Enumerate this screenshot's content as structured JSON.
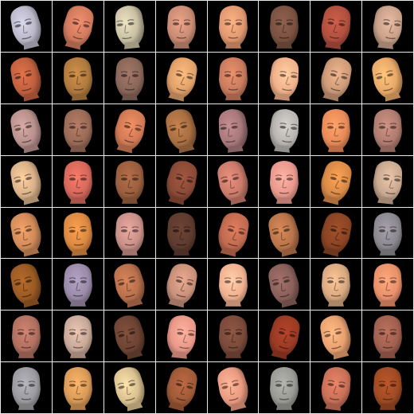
{
  "grid": {
    "rows": 8,
    "cols": 8,
    "cell_background": "#000000",
    "separator_color": "#e8e8e8"
  },
  "faces": [
    {
      "skin": "#b9b7c8",
      "pose": "tilt-left"
    },
    {
      "skin": "#d07a5e",
      "pose": "tilt-right"
    },
    {
      "skin": "#c9c0a4",
      "pose": "turn-left"
    },
    {
      "skin": "#c98b74",
      "pose": "front"
    },
    {
      "skin": "#e09870",
      "pose": "front"
    },
    {
      "skin": "#7a5242",
      "pose": "front"
    },
    {
      "skin": "#b0503f",
      "pose": "tilt-up"
    },
    {
      "skin": "#c8a08a",
      "pose": "turn-right"
    },
    {
      "skin": "#c0603f",
      "pose": "tilt-left"
    },
    {
      "skin": "#b07a3e",
      "pose": "tilt-down"
    },
    {
      "skin": "#8a6658",
      "pose": "front"
    },
    {
      "skin": "#e0a06a",
      "pose": "tilt-right"
    },
    {
      "skin": "#c87b5d",
      "pose": "front"
    },
    {
      "skin": "#f0b08a",
      "pose": "turn-right"
    },
    {
      "skin": "#cd9a78",
      "pose": "tilt-right"
    },
    {
      "skin": "#e8a868",
      "pose": "tilt-left"
    },
    {
      "skin": "#b8908c",
      "pose": "tilt-left"
    },
    {
      "skin": "#9a6a56",
      "pose": "front"
    },
    {
      "skin": "#d07a55",
      "pose": "tilt-right"
    },
    {
      "skin": "#a86e42",
      "pose": "tilt-left"
    },
    {
      "skin": "#a8787a",
      "pose": "turn-left"
    },
    {
      "skin": "#b8b4b0",
      "pose": "turn-right"
    },
    {
      "skin": "#e88a58",
      "pose": "front"
    },
    {
      "skin": "#b07c70",
      "pose": "front"
    },
    {
      "skin": "#d8b088",
      "pose": "tilt-left"
    },
    {
      "skin": "#d4685a",
      "pose": "front"
    },
    {
      "skin": "#9a5e3e",
      "pose": "front"
    },
    {
      "skin": "#8a4a36",
      "pose": "tilt-right"
    },
    {
      "skin": "#c87a6a",
      "pose": "tilt-left"
    },
    {
      "skin": "#e8988c",
      "pose": "front"
    },
    {
      "skin": "#d88a48",
      "pose": "tilt-right"
    },
    {
      "skin": "#c8a890",
      "pose": "turn-right"
    },
    {
      "skin": "#d08a58",
      "pose": "tilt-left"
    },
    {
      "skin": "#d98842",
      "pose": "tilt-down"
    },
    {
      "skin": "#c89088",
      "pose": "front"
    },
    {
      "skin": "#5e3a2e",
      "pose": "front"
    },
    {
      "skin": "#c06a50",
      "pose": "tilt-right"
    },
    {
      "skin": "#b8744a",
      "pose": "tilt-left"
    },
    {
      "skin": "#8a4424",
      "pose": "tilt-right"
    },
    {
      "skin": "#8c8890",
      "pose": "front"
    },
    {
      "skin": "#9a5a24",
      "pose": "tilt-left"
    },
    {
      "skin": "#9a8aa8",
      "pose": "front"
    },
    {
      "skin": "#b8704c",
      "pose": "tilt-left"
    },
    {
      "skin": "#c8907a",
      "pose": "tilt-right"
    },
    {
      "skin": "#f0b090",
      "pose": "front"
    },
    {
      "skin": "#8a605a",
      "pose": "tilt-left"
    },
    {
      "skin": "#d8a880",
      "pose": "front"
    },
    {
      "skin": "#e8906a",
      "pose": "front"
    },
    {
      "skin": "#b07060",
      "pose": "front"
    },
    {
      "skin": "#c8a898",
      "pose": "front"
    },
    {
      "skin": "#6e4434",
      "pose": "tilt-left"
    },
    {
      "skin": "#e89888",
      "pose": "turn-right"
    },
    {
      "skin": "#7a4a3a",
      "pose": "front"
    },
    {
      "skin": "#9a3a24",
      "pose": "tilt-right"
    },
    {
      "skin": "#e8a070",
      "pose": "tilt-left"
    },
    {
      "skin": "#a06050",
      "pose": "front"
    },
    {
      "skin": "#9a9aa0",
      "pose": "front"
    },
    {
      "skin": "#d89a58",
      "pose": "front"
    },
    {
      "skin": "#d8c090",
      "pose": "tilt-left"
    },
    {
      "skin": "#a05a38",
      "pose": "tilt-right"
    },
    {
      "skin": "#e89a80",
      "pose": "tilt-left"
    },
    {
      "skin": "#9a9a94",
      "pose": "front"
    },
    {
      "skin": "#c87058",
      "pose": "tilt-up"
    },
    {
      "skin": "#a04a24",
      "pose": "front"
    }
  ]
}
